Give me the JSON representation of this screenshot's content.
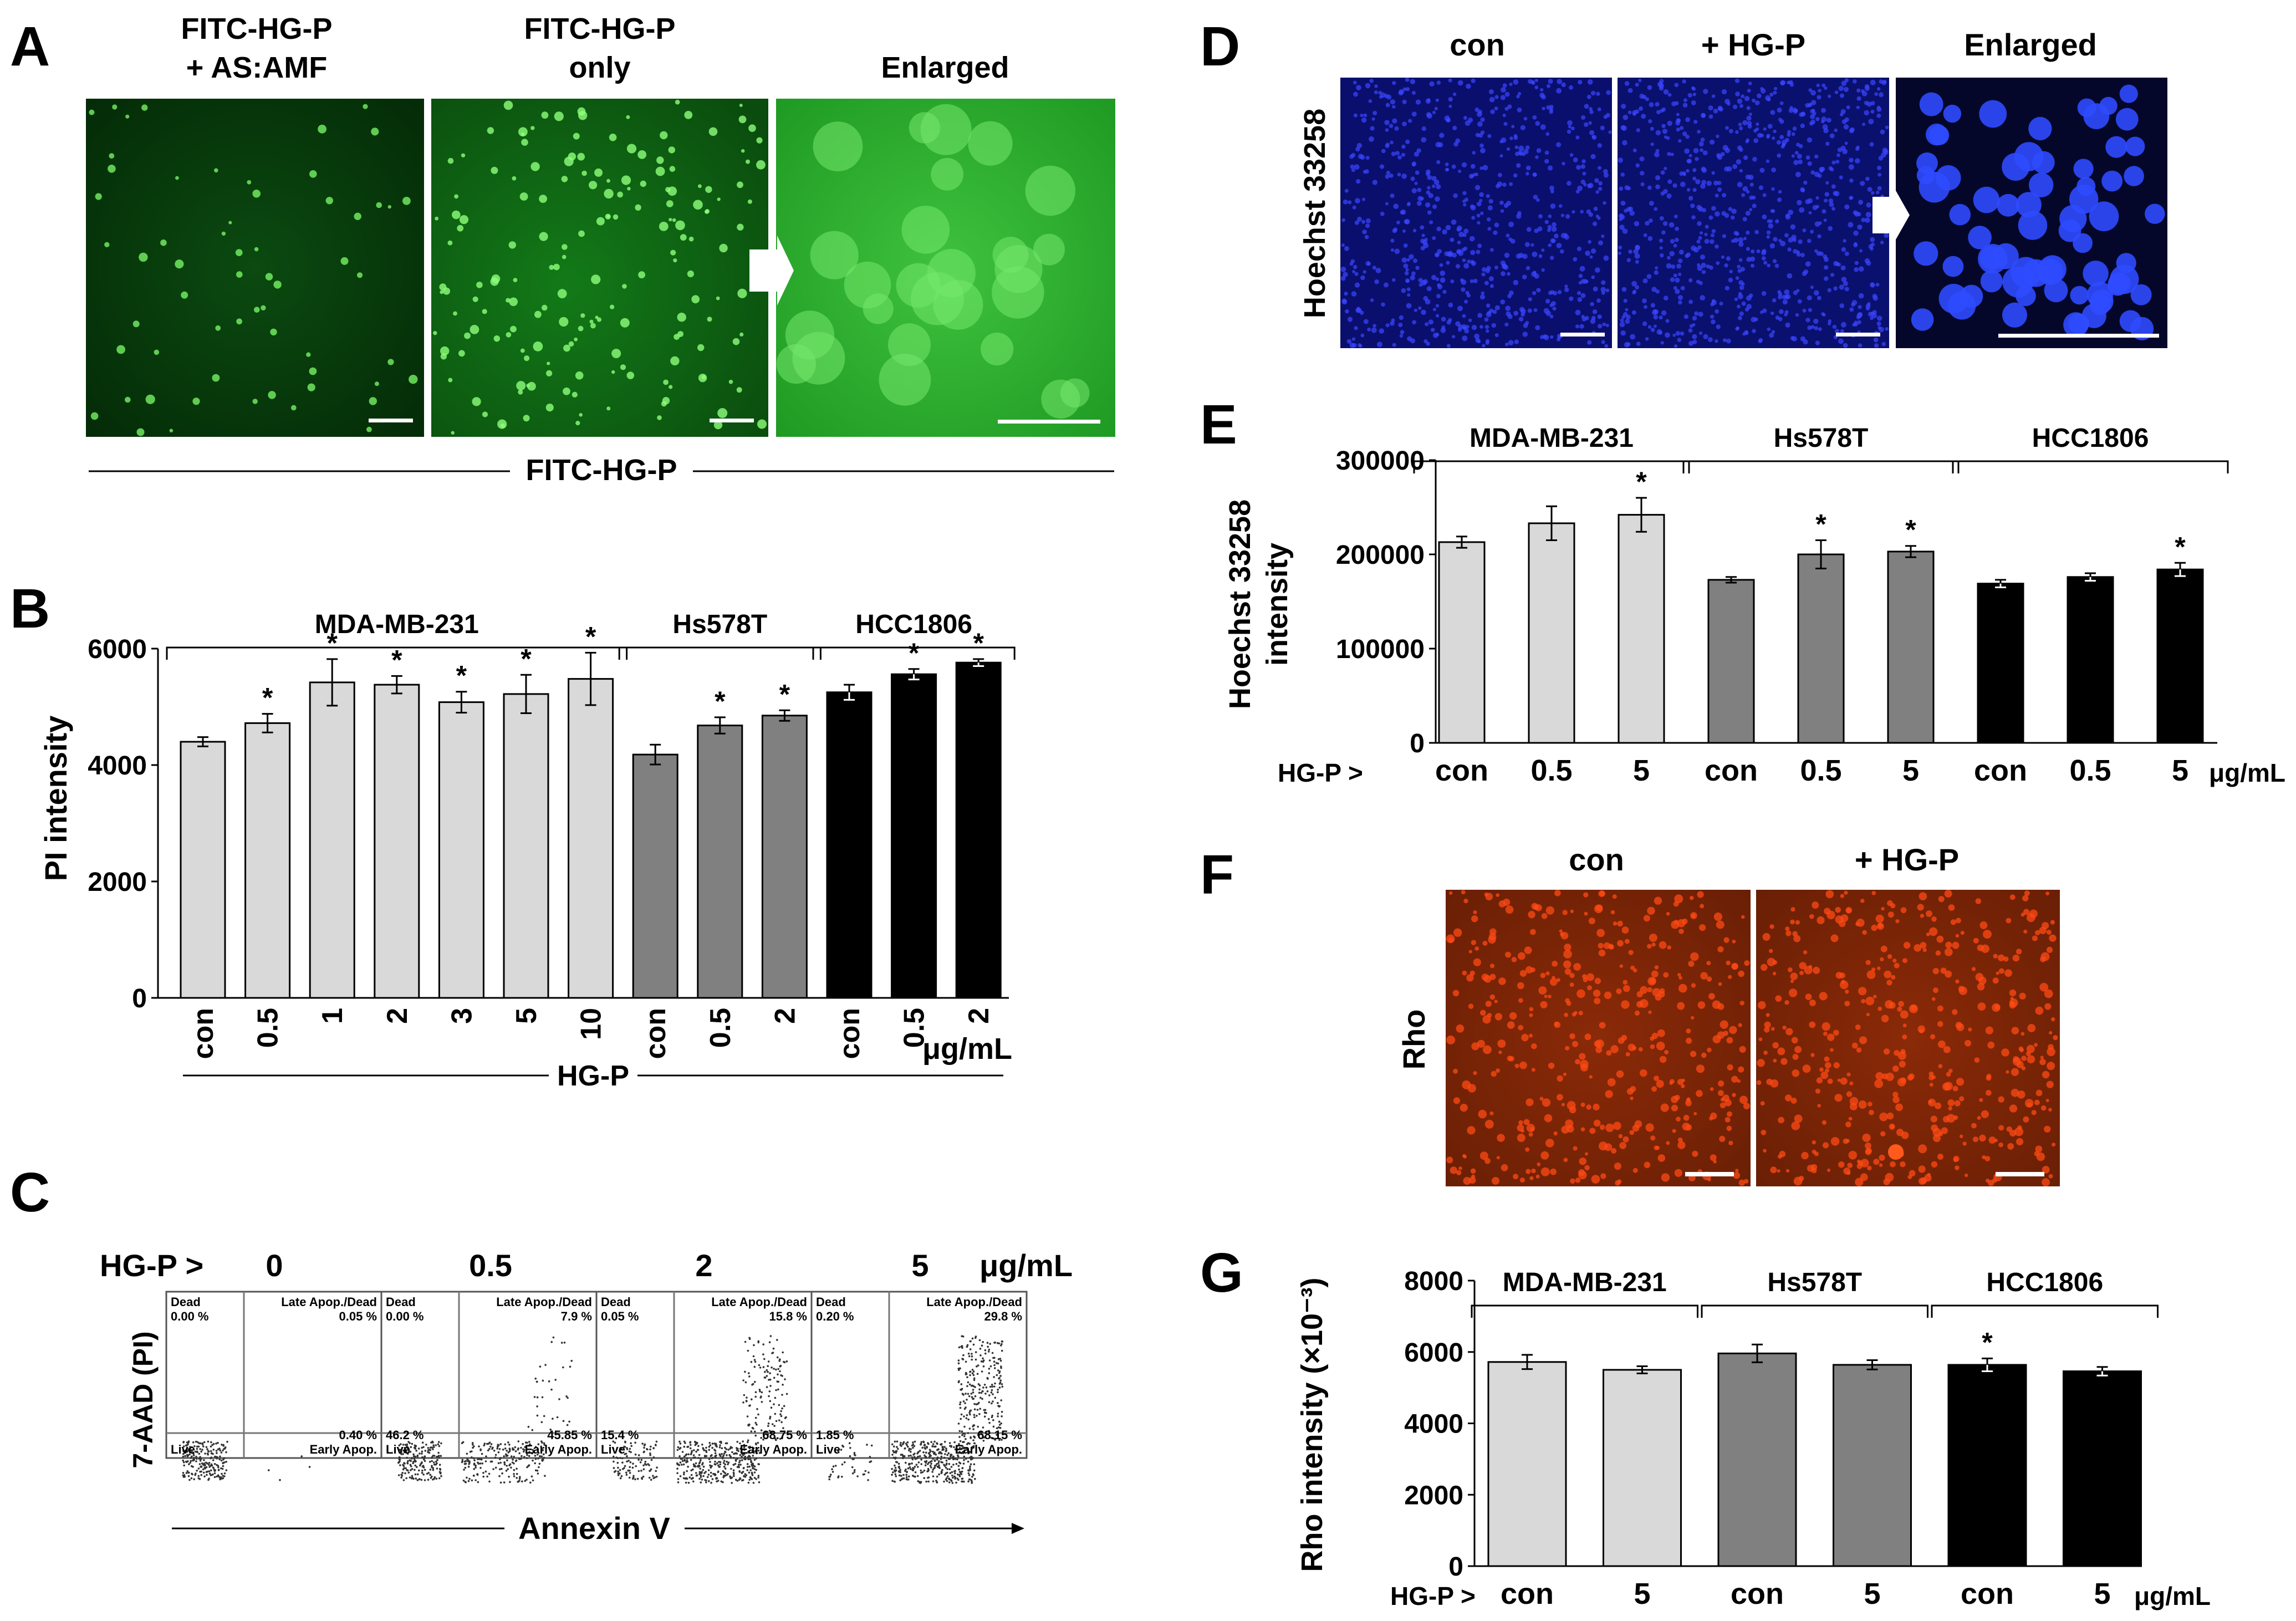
{
  "panels": {
    "A": {
      "letter": "A",
      "col_titles": [
        [
          "FITC-HG-P",
          "+ AS:AMF"
        ],
        [
          "FITC-HG-P",
          "only"
        ],
        [
          "Enlarged"
        ]
      ],
      "bottom_label": "FITC-HG-P"
    },
    "C": {
      "letter": "C",
      "hgp_label": "HG-P >",
      "doses": [
        "0",
        "0.5",
        "2",
        "5"
      ],
      "unit": "μg/mL",
      "ylabel": "7-AAD (PI)",
      "xlabel": "Annexin V",
      "quad_labels": {
        "dead": "Dead",
        "late": "Late Apop./Dead",
        "live": "Live",
        "early": "Early Apop."
      },
      "plots": [
        {
          "dead": "0.00 %",
          "late": "0.05 %",
          "live": "",
          "early": "0.40 %"
        },
        {
          "dead": "0.00 %",
          "late": "7.9 %",
          "live": "46.2 %",
          "early": "45.85 %"
        },
        {
          "dead": "0.05 %",
          "late": "15.8 %",
          "live": "15.4 %",
          "early": "68.75 %"
        },
        {
          "dead": "0.20 %",
          "late": "29.8 %",
          "live": "1.85 %",
          "early": "68.15 %"
        }
      ]
    },
    "D": {
      "letter": "D",
      "col_titles": [
        "con",
        "+ HG-P",
        "Enlarged"
      ],
      "row_label": "Hoechst 33258"
    },
    "F": {
      "letter": "F",
      "col_titles": [
        "con",
        "+ HG-P"
      ],
      "row_label": "Rho"
    }
  },
  "chart_data": [
    {
      "panel": "B",
      "type": "bar",
      "ylabel": "PI intensity",
      "ylim": [
        0,
        6000
      ],
      "yticks": [
        "0",
        "2000",
        "4000",
        "6000"
      ],
      "categories": [
        "con",
        "0.5",
        "1",
        "2",
        "3",
        "5",
        "10",
        "con",
        "0.5",
        "2",
        "con",
        "0.5",
        "2"
      ],
      "values": [
        4400,
        4720,
        5420,
        5380,
        5080,
        5220,
        5480,
        4180,
        4680,
        4850,
        5250,
        5560,
        5760
      ],
      "errors": [
        80,
        160,
        400,
        150,
        180,
        330,
        450,
        170,
        140,
        90,
        130,
        90,
        60
      ],
      "significant": [
        false,
        true,
        true,
        true,
        true,
        true,
        true,
        false,
        true,
        true,
        false,
        true,
        true
      ],
      "groups": [
        {
          "name": "MDA-MB-231",
          "color": "#d9d9d9"
        },
        {
          "name": "Hs578T",
          "color": "#808080"
        },
        {
          "name": "HCC1806",
          "color": "#000000"
        }
      ],
      "group_index": [
        0,
        0,
        0,
        0,
        0,
        0,
        0,
        1,
        1,
        1,
        2,
        2,
        2
      ],
      "x_title": "HG-P",
      "unit": "μg/mL"
    },
    {
      "panel": "E",
      "type": "bar",
      "ylabel_lines": [
        "Hoechst 33258",
        "intensity"
      ],
      "ylim": [
        0,
        300000
      ],
      "yticks": [
        "0",
        "100000",
        "200000",
        "300000"
      ],
      "categories": [
        "con",
        "0.5",
        "5",
        "con",
        "0.5",
        "5",
        "con",
        "0.5",
        "5"
      ],
      "values": [
        213000,
        233000,
        242000,
        173000,
        200000,
        203000,
        169000,
        176000,
        184000
      ],
      "errors": [
        6000,
        18000,
        18000,
        3000,
        15000,
        6000,
        4000,
        4000,
        7000
      ],
      "significant": [
        false,
        false,
        true,
        false,
        true,
        true,
        false,
        false,
        true
      ],
      "groups": [
        {
          "name": "MDA-MB-231",
          "color": "#d9d9d9"
        },
        {
          "name": "Hs578T",
          "color": "#808080"
        },
        {
          "name": "HCC1806",
          "color": "#000000"
        }
      ],
      "group_index": [
        0,
        0,
        0,
        1,
        1,
        1,
        2,
        2,
        2
      ],
      "x_prefix": "HG-P >",
      "unit": "μg/mL"
    },
    {
      "panel": "G",
      "type": "bar",
      "ylabel": "Rho intensity (×10⁻³)",
      "ylim": [
        0,
        8000
      ],
      "yticks": [
        "0",
        "2000",
        "4000",
        "6000",
        "8000"
      ],
      "categories": [
        "con",
        "5",
        "con",
        "5",
        "con",
        "5"
      ],
      "values": [
        5720,
        5500,
        5960,
        5640,
        5640,
        5460
      ],
      "errors": [
        200,
        100,
        250,
        130,
        180,
        120
      ],
      "significant": [
        false,
        false,
        false,
        false,
        true,
        false
      ],
      "groups": [
        {
          "name": "MDA-MB-231",
          "color": "#d9d9d9"
        },
        {
          "name": "Hs578T",
          "color": "#808080"
        },
        {
          "name": "HCC1806",
          "color": "#000000"
        }
      ],
      "group_index": [
        0,
        0,
        1,
        1,
        2,
        2
      ],
      "x_prefix": "HG-P >",
      "unit": "μg/mL"
    }
  ]
}
